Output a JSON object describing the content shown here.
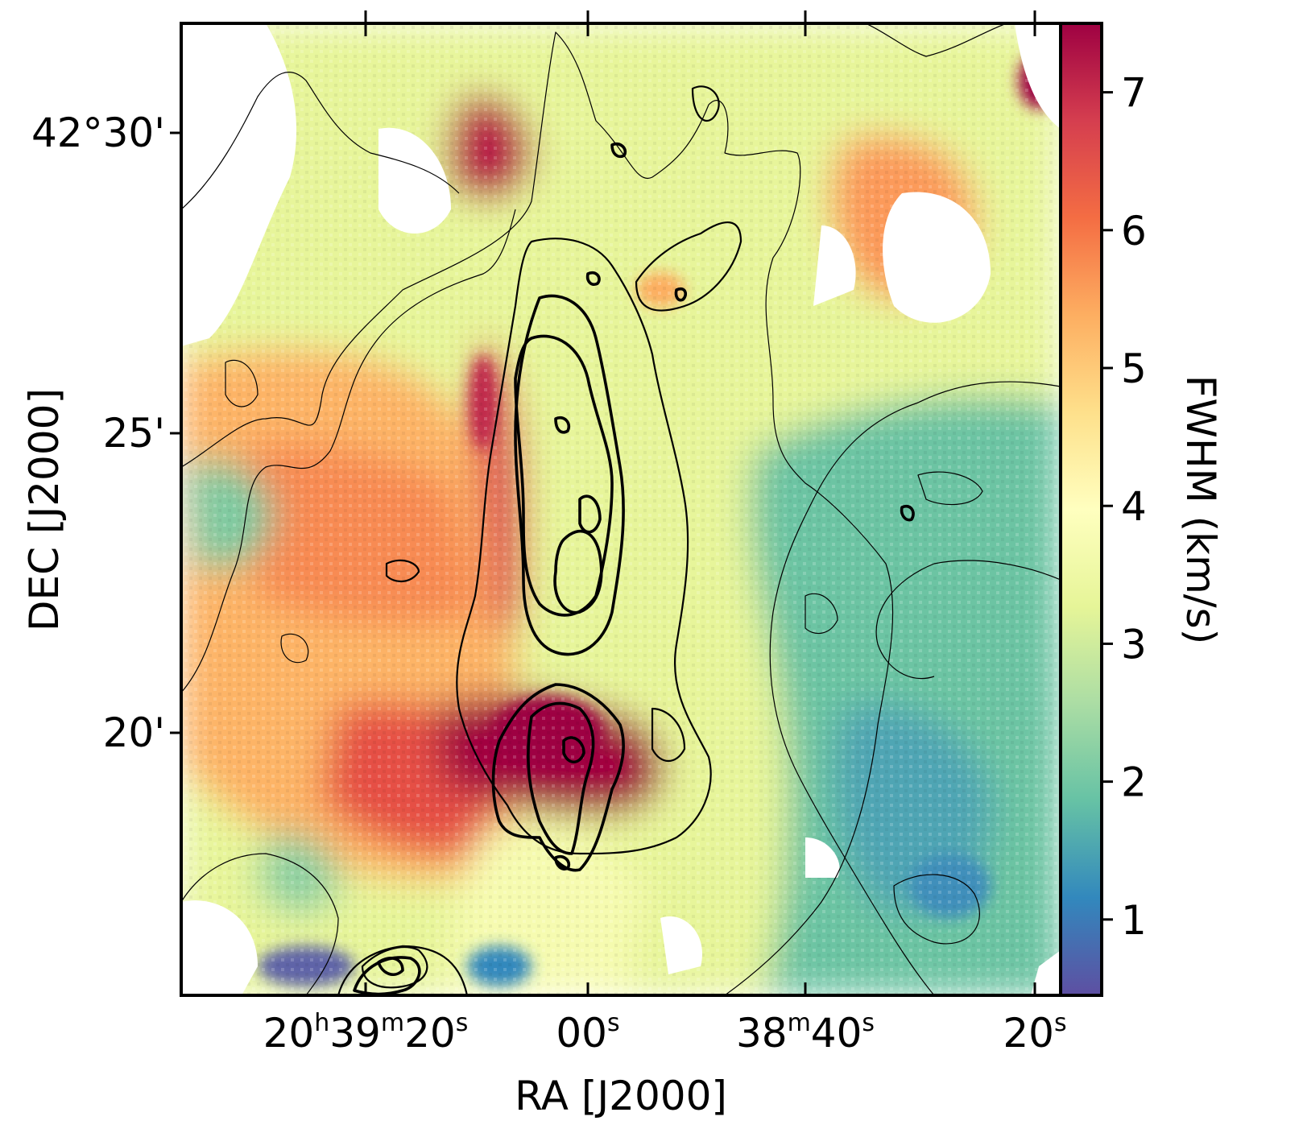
{
  "chart_data": {
    "type": "heatmap",
    "title": "",
    "xlabel": "RA [J2000]",
    "ylabel": "DEC [J2000]",
    "x_ticks": [
      {
        "h": "20",
        "m": "39",
        "s": "20",
        "prefix": "",
        "value": "20h39m20s"
      },
      {
        "h": "",
        "m": "",
        "s": "00",
        "prefix": "",
        "value": "20h39m00s"
      },
      {
        "h": "",
        "m": "38",
        "s": "40",
        "prefix": "",
        "value": "20h38m40s"
      },
      {
        "h": "",
        "m": "",
        "s": "20",
        "prefix": "",
        "value": "20h38m20s"
      }
    ],
    "y_ticks": [
      "42°30'",
      "25'",
      "20'"
    ],
    "colorbar": {
      "label": "FWHM (km/s)",
      "colormap": "Spectral_r",
      "vmin": 0.45,
      "vmax": 7.5,
      "ticks": [
        "1",
        "2",
        "3",
        "4",
        "5",
        "6",
        "7"
      ],
      "colors": [
        "#5e4fa2",
        "#3288bd",
        "#66c2a5",
        "#abdda4",
        "#e6f598",
        "#ffffbf",
        "#fee08b",
        "#fdae61",
        "#f46d43",
        "#d53e4f",
        "#9e0142"
      ]
    },
    "map": {
      "description_of_structure": "Elongated north-south filament with high FWHM (>7 km/s) hub near DEC 42°19'30\", broad linewidth (~5-6 km/s) region to the east, narrow linewidth (~2 km/s) region to the west/south-west",
      "contours": "intensity contours overlaid, thick and thin black lines"
    }
  }
}
